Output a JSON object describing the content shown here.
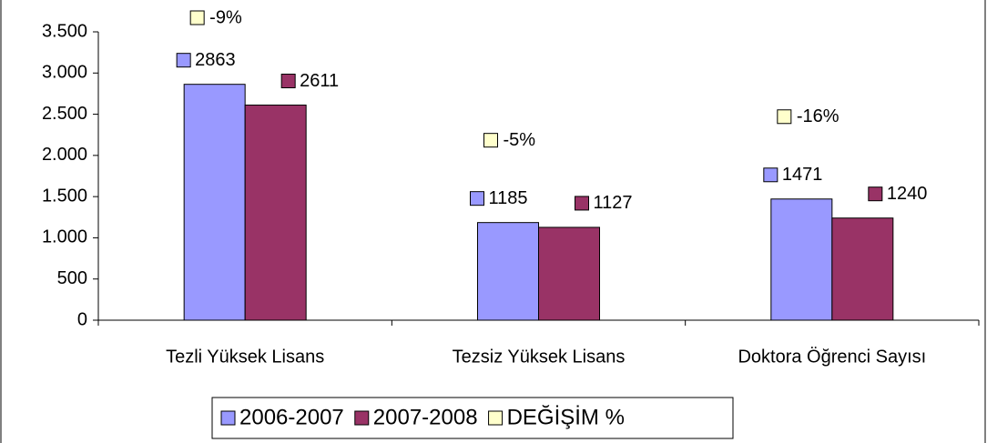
{
  "chart_data": {
    "type": "bar",
    "categories": [
      "Tezli Yüksek Lisans",
      "Tezsiz Yüksek Lisans",
      "Doktora Öğrenci Sayısı"
    ],
    "series": [
      {
        "name": "2006-2007",
        "color": "#9999ff",
        "values": [
          2863,
          1185,
          1471
        ]
      },
      {
        "name": "2007-2008",
        "color": "#993366",
        "values": [
          2611,
          1127,
          1240
        ]
      },
      {
        "name": "DEĞİŞİM %",
        "color": "#ffffcc",
        "values": [
          -9,
          -5,
          -16
        ],
        "value_labels": [
          "-9%",
          "-5%",
          "-16%"
        ]
      }
    ],
    "ylim": [
      0,
      3500
    ],
    "yticks": [
      0,
      500,
      {
        "value": 1000,
        "label": "1.000"
      },
      {
        "value": 1500,
        "label": "1.500"
      },
      {
        "value": 2000,
        "label": "2.000"
      },
      {
        "value": 2500,
        "label": "2.500"
      },
      {
        "value": 3000,
        "label": "3.000"
      },
      {
        "value": 3500,
        "label": "3.500"
      }
    ],
    "legend": "bottom"
  }
}
